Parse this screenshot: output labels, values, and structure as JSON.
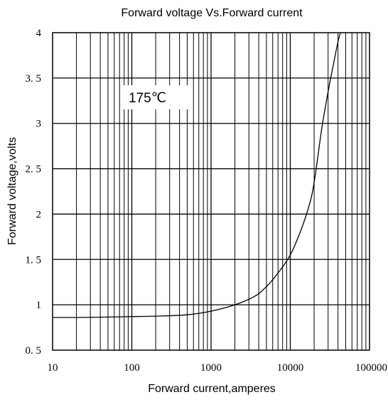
{
  "chart_data": {
    "type": "line",
    "title": "Forward voltage Vs.Forward current",
    "xlabel": "Forward current,amperes",
    "ylabel": "Forward voltage,volts",
    "x_scale": "log",
    "xlim": [
      10,
      100000
    ],
    "ylim": [
      0.5,
      4
    ],
    "x_ticks": [
      10,
      100,
      1000,
      10000,
      100000
    ],
    "x_tick_labels": [
      "10",
      "100",
      "1000",
      "10000",
      "100000"
    ],
    "y_ticks": [
      0.5,
      1,
      1.5,
      2,
      2.5,
      3,
      3.5,
      4
    ],
    "y_tick_labels": [
      "0. 5",
      "1",
      "1. 5",
      "2",
      "2. 5",
      "3",
      "3. 5",
      "4"
    ],
    "grid": true,
    "annotation": "175℃",
    "series": [
      {
        "x": [
          10,
          20,
          50,
          100,
          200,
          500,
          1000,
          2000,
          3500,
          5000,
          7000,
          10000,
          14000,
          18000,
          20000,
          22000,
          25000,
          30000,
          35000,
          40000,
          43000
        ],
        "y": [
          0.86,
          0.86,
          0.865,
          0.87,
          0.875,
          0.89,
          0.93,
          1.0,
          1.09,
          1.2,
          1.35,
          1.55,
          1.85,
          2.15,
          2.35,
          2.6,
          2.95,
          3.35,
          3.65,
          3.9,
          4.0
        ],
        "color": "#000000"
      }
    ]
  }
}
